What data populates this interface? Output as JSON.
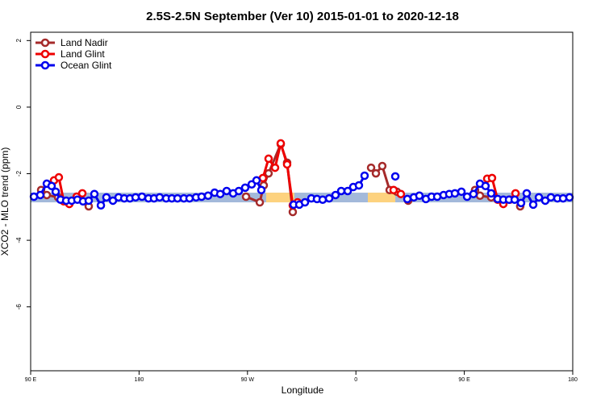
{
  "chart_data": {
    "type": "line",
    "title": "2.5S-2.5N September (Ver 10)   2015-01-01 to 2020-12-18",
    "x_label": "Longitude",
    "y_label": "XCO2 - MLO trend (ppm)",
    "xlim": [
      90,
      540
    ],
    "ylim": [
      -7.92,
      2.25
    ],
    "xticks": [
      {
        "value": 90,
        "label": "90 E"
      },
      {
        "value": 180,
        "label": "180"
      },
      {
        "value": 270,
        "label": "90 W"
      },
      {
        "value": 360,
        "label": "0"
      },
      {
        "value": 450,
        "label": "90 E"
      },
      {
        "value": 540,
        "label": "180"
      }
    ],
    "yticks": [
      -6,
      -4,
      -2,
      0,
      2
    ],
    "legend": "top-left",
    "band": {
      "ylim": [
        -2.86,
        -2.57
      ],
      "color": "#a3b9da",
      "highlight_color": "#fdd27e",
      "highlights": [
        [
          285.5,
          308.9
        ],
        [
          369.9,
          392.7
        ]
      ]
    },
    "series": [
      {
        "name": "Land Nadir",
        "color": "#a52a2a",
        "x": [
          98.7,
          103.4,
          112.8,
          null,
          138.2,
          null,
          268.8,
          280.2,
          283.5,
          287.5,
          297.6,
          302.9,
          307.6,
          null,
          372.6,
          376.6,
          381.9,
          388.0,
          394.0,
          null,
          403.4,
          null,
          458.9,
          463.0,
          472.3,
          null,
          496.4
        ],
        "values": [
          -2.49,
          -2.64,
          -2.71,
          null,
          -2.98,
          null,
          -2.69,
          -2.86,
          -2.35,
          -1.99,
          -1.11,
          -1.67,
          -3.15,
          null,
          -1.82,
          -1.99,
          -1.77,
          -2.49,
          -2.54,
          null,
          -2.81,
          null,
          -2.49,
          -2.66,
          -2.71,
          null,
          -2.98
        ]
      },
      {
        "name": "Land Glint",
        "color": "#ee0000",
        "x": [
          109.4,
          113.4,
          117.5,
          122.1,
          128.2,
          132.9,
          null,
          282.8,
          287.5,
          292.9,
          297.6,
          302.9,
          307.6,
          311.6,
          null,
          391.3,
          397.3,
          null,
          469.0,
          473.0,
          477.7,
          482.4,
          487.8,
          492.5
        ],
        "values": [
          -2.2,
          -2.11,
          -2.83,
          -2.91,
          -2.69,
          -2.59,
          null,
          -2.13,
          -1.55,
          -1.82,
          -1.09,
          -1.72,
          -2.95,
          -2.86,
          null,
          -2.49,
          -2.61,
          null,
          -2.15,
          -2.13,
          -2.78,
          -2.91,
          -2.78,
          -2.59
        ]
      },
      {
        "name": "Ocean Glint",
        "color": "#0000ee",
        "x": [
          92.7,
          98.0,
          103.4,
          107.4,
          110.8,
          114.8,
          119.5,
          124.1,
          128.8,
          133.5,
          138.2,
          142.9,
          148.3,
          152.9,
          158.3,
          163.0,
          167.7,
          172.4,
          177.1,
          182.4,
          187.8,
          192.4,
          197.1,
          202.5,
          207.2,
          211.9,
          217.2,
          221.9,
          227.3,
          231.9,
          237.3,
          242.7,
          247.4,
          252.7,
          258.1,
          262.8,
          268.1,
          273.5,
          277.5,
          281.5,
          null,
          308.3,
          313.0,
          317.7,
          323.0,
          327.7,
          332.4,
          337.8,
          343.1,
          347.8,
          353.2,
          357.8,
          362.5,
          367.2,
          null,
          392.7,
          null,
          402.7,
          408.1,
          412.7,
          418.1,
          422.8,
          427.5,
          432.8,
          437.5,
          442.2,
          447.6,
          452.3,
          457.6,
          463.0,
          467.6,
          472.3,
          477.7,
          482.4,
          487.1,
          491.8,
          497.1,
          501.8,
          507.2,
          511.9,
          517.2,
          521.9,
          527.3,
          532.0,
          537.3
        ],
        "values": [
          -2.69,
          -2.64,
          -2.3,
          -2.37,
          -2.54,
          -2.78,
          -2.81,
          -2.81,
          -2.78,
          -2.83,
          -2.81,
          -2.61,
          -2.95,
          -2.71,
          -2.81,
          -2.71,
          -2.74,
          -2.74,
          -2.71,
          -2.69,
          -2.74,
          -2.74,
          -2.71,
          -2.74,
          -2.74,
          -2.74,
          -2.74,
          -2.74,
          -2.71,
          -2.69,
          -2.66,
          -2.57,
          -2.61,
          -2.52,
          -2.59,
          -2.52,
          -2.42,
          -2.32,
          -2.2,
          -2.49,
          null,
          -2.93,
          -2.93,
          -2.86,
          -2.74,
          -2.76,
          -2.78,
          -2.74,
          -2.64,
          -2.52,
          -2.52,
          -2.4,
          -2.35,
          -2.06,
          null,
          -2.08,
          null,
          -2.76,
          -2.71,
          -2.66,
          -2.76,
          -2.69,
          -2.69,
          -2.64,
          -2.61,
          -2.59,
          -2.54,
          -2.69,
          -2.61,
          -2.3,
          -2.37,
          -2.59,
          -2.76,
          -2.78,
          -2.78,
          -2.78,
          -2.88,
          -2.59,
          -2.93,
          -2.71,
          -2.81,
          -2.71,
          -2.74,
          -2.74,
          -2.71
        ]
      }
    ]
  }
}
